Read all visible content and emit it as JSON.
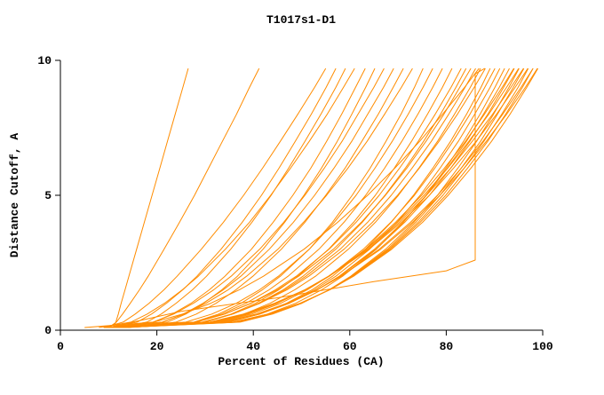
{
  "chart_data": {
    "type": "line",
    "title": "T1017s1-D1",
    "xlabel": "Percent of Residues (CA)",
    "ylabel": "Distance Cutoff, A",
    "xlim": [
      0,
      100
    ],
    "ylim": [
      0,
      10
    ],
    "x_ticks": [
      0,
      20,
      40,
      60,
      80,
      100
    ],
    "y_ticks": [
      0,
      5,
      10
    ],
    "grid": false,
    "legend": "none",
    "line_color": "#ff8c00",
    "axis_color": "#000000",
    "y_samples": [
      0.1,
      0.3,
      0.6,
      1,
      1.5,
      2,
      3,
      4,
      5,
      6,
      7,
      8,
      9,
      9.7
    ],
    "series": [
      {
        "x": [
          11,
          11.5,
          12,
          12.6,
          13.4,
          14.2,
          15.8,
          17.4,
          19,
          20.6,
          22.2,
          23.8,
          25.4,
          26.5
        ]
      },
      {
        "x": [
          10,
          11.6,
          12.9,
          14.5,
          16.4,
          18.2,
          21.5,
          24.7,
          27.8,
          30.7,
          33.6,
          36.5,
          39.2,
          41.2
        ]
      },
      {
        "x": [
          9,
          13,
          15.5,
          18.4,
          21.5,
          24.2,
          29.2,
          33.8,
          38,
          41.9,
          45.6,
          49.2,
          52.7,
          55
        ]
      },
      {
        "x": [
          10,
          15.9,
          18.9,
          22,
          25.4,
          28.3,
          33.3,
          37.7,
          41.7,
          45.3,
          48.7,
          52,
          55.1,
          57.1
        ]
      },
      {
        "x": [
          12,
          17.9,
          20.9,
          24,
          27.4,
          30.3,
          35.3,
          39.7,
          43.7,
          47.3,
          50.7,
          54,
          57.1,
          59.1
        ]
      },
      {
        "x": [
          8,
          14.6,
          18,
          21.6,
          25.3,
          28.6,
          34.2,
          39.2,
          43.6,
          47.7,
          51.6,
          55.3,
          58.7,
          61
        ]
      },
      {
        "x": [
          10,
          19.3,
          23.2,
          27.1,
          30.9,
          34.1,
          39.6,
          44.1,
          48.2,
          51.9,
          55.2,
          58.3,
          61.2,
          63.2
        ]
      },
      {
        "x": [
          13,
          22.2,
          26,
          29.7,
          33.5,
          36.7,
          42,
          46.5,
          50.5,
          54.1,
          57.4,
          60.4,
          63.3,
          65.2
        ]
      },
      {
        "x": [
          9,
          19.2,
          23.5,
          27.6,
          31.8,
          35.4,
          41.3,
          46.3,
          50.7,
          54.7,
          58.4,
          61.7,
          65,
          67.1
        ]
      },
      {
        "x": [
          11,
          21.2,
          25.5,
          29.6,
          33.8,
          37.4,
          43.3,
          48.3,
          52.7,
          56.7,
          60.4,
          63.7,
          67,
          69.1
        ]
      },
      {
        "x": [
          14,
          24,
          28.2,
          32.3,
          36.4,
          39.9,
          45.8,
          50.7,
          55,
          59,
          62.5,
          65.9,
          69,
          71.1
        ]
      },
      {
        "x": [
          10,
          21.1,
          25.7,
          30.2,
          34.8,
          38.6,
          45.1,
          50.4,
          55.2,
          59.6,
          63.6,
          67.2,
          70.7,
          73
        ]
      },
      {
        "x": [
          12,
          27.7,
          32.8,
          37.5,
          41.9,
          45.6,
          51.6,
          56.4,
          60.5,
          64.2,
          67.5,
          70.6,
          73.4,
          75.2
        ]
      },
      {
        "x": [
          9,
          26,
          31.4,
          36.5,
          41.3,
          45.2,
          51.6,
          56.8,
          61.3,
          65.2,
          68.8,
          72.1,
          75.2,
          77.2
        ]
      },
      {
        "x": [
          11,
          28,
          33.4,
          38.5,
          43.3,
          47.2,
          53.6,
          58.8,
          63.3,
          67.2,
          70.8,
          74.1,
          77.2,
          79.2
        ]
      },
      {
        "x": [
          13,
          30,
          35.4,
          40.5,
          45.3,
          49.2,
          55.6,
          60.8,
          65.3,
          69.2,
          72.8,
          76.1,
          79.2,
          81.2
        ]
      },
      {
        "x": [
          10,
          28.2,
          34.1,
          39.5,
          44.6,
          48.9,
          55.7,
          61.3,
          66.1,
          70.3,
          74.2,
          77.7,
          81,
          83.1
        ]
      },
      {
        "x": [
          12,
          30,
          35.7,
          41.1,
          46.2,
          50.3,
          57.1,
          62.6,
          67.3,
          71.5,
          75.3,
          78.8,
          82,
          84.1
        ]
      },
      {
        "x": [
          9,
          27.9,
          34,
          39.6,
          45,
          49.4,
          56.6,
          62.4,
          67.4,
          71.8,
          75.8,
          79.5,
          82.8,
          85.1
        ]
      },
      {
        "x": [
          11,
          29.7,
          35.7,
          41.2,
          46.6,
          50.9,
          58,
          63.7,
          68.6,
          72.9,
          76.9,
          80.5,
          83.9,
          86.1
        ]
      },
      {
        "x": [
          14,
          32.2,
          38.1,
          43.5,
          48.6,
          52.9,
          59.7,
          65.3,
          70.1,
          74.3,
          78.2,
          81.7,
          85,
          87.1
        ]
      },
      {
        "x": [
          10,
          29.4,
          35.7,
          41.4,
          47,
          51.5,
          58.8,
          64.7,
          69.9,
          74.4,
          78.5,
          82.3,
          85.8,
          88.1
        ]
      },
      {
        "x": [
          12,
          34.9,
          41.2,
          46.9,
          52.2,
          56.4,
          63.2,
          68.6,
          73.2,
          77.2,
          80.9,
          84.2,
          87.2,
          89.1
        ]
      },
      {
        "x": [
          9,
          33,
          39.7,
          45.7,
          51.2,
          55.7,
          62.8,
          68.5,
          73.4,
          77.6,
          81.4,
          84.9,
          88,
          90.1
        ]
      },
      {
        "x": [
          11,
          34.7,
          41.3,
          47.2,
          52.7,
          57.1,
          64.1,
          69.8,
          74.6,
          78.7,
          82.5,
          85.9,
          89.1,
          91.1
        ]
      },
      {
        "x": [
          13,
          36.4,
          42.9,
          48.8,
          54.2,
          58.5,
          65.5,
          71.1,
          75.8,
          79.9,
          83.6,
          87,
          90.1,
          92.1
        ]
      },
      {
        "x": [
          10,
          34.6,
          41.4,
          47.5,
          53.3,
          57.8,
          65.1,
          71,
          75.9,
          80.2,
          84.2,
          87.7,
          91,
          93.1
        ]
      },
      {
        "x": [
          12,
          32.4,
          39,
          45,
          50.8,
          55.6,
          63.3,
          69.5,
          74.9,
          79.6,
          84,
          87.9,
          91.6,
          94
        ]
      },
      {
        "x": [
          9,
          34.2,
          41.2,
          47.4,
          53.3,
          57.9,
          65.4,
          71.4,
          76.5,
          80.9,
          84.9,
          88.6,
          91.9,
          94.1
        ]
      },
      {
        "x": [
          11,
          31.9,
          38.6,
          44.8,
          50.8,
          55.6,
          63.5,
          69.9,
          75.4,
          80.3,
          84.7,
          88.8,
          92.5,
          95
        ]
      },
      {
        "x": [
          13,
          37.3,
          44,
          50.1,
          55.7,
          60.2,
          67.4,
          73.3,
          78.2,
          82.4,
          86.3,
          89.8,
          93,
          95.1
        ]
      },
      {
        "x": [
          10,
          31.4,
          38.3,
          44.6,
          50.7,
          55.7,
          63.8,
          70.3,
          75.9,
          80.9,
          85.4,
          89.6,
          93.4,
          96
        ]
      },
      {
        "x": [
          12,
          36.9,
          43.8,
          50,
          55.8,
          60.4,
          67.8,
          73.7,
          78.7,
          83.1,
          87.1,
          90.6,
          93.9,
          96.1
        ]
      },
      {
        "x": [
          9,
          30.9,
          37.9,
          44.4,
          50.7,
          55.7,
          64,
          70.7,
          76.5,
          81.5,
          86.2,
          90.4,
          94.3,
          96.9
        ]
      },
      {
        "x": [
          11,
          36.5,
          43.5,
          49.9,
          55.8,
          60.5,
          68.1,
          74.2,
          79.3,
          83.7,
          87.8,
          91.5,
          94.9,
          97
        ]
      },
      {
        "x": [
          13,
          34.2,
          41,
          47.2,
          53.2,
          58.2,
          66.1,
          72.6,
          78.2,
          83.1,
          87.6,
          91.7,
          95.5,
          98
        ]
      },
      {
        "x": [
          10,
          36.1,
          43.3,
          49.8,
          55.8,
          60.6,
          68.4,
          74.6,
          79.9,
          84.4,
          88.6,
          92.3,
          95.8,
          98
        ]
      },
      {
        "x": [
          12,
          33.6,
          40.6,
          47,
          53.2,
          58.2,
          66.4,
          73,
          78.7,
          83.7,
          88.3,
          92.5,
          96.4,
          98.9
        ]
      },
      {
        "x": [
          9,
          35.7,
          43,
          49.7,
          55.9,
          60.8,
          68.7,
          75.1,
          80.4,
          85.1,
          89.4,
          93.2,
          96.7,
          99
        ]
      },
      {
        "x": [
          5,
          19.4,
          25.3,
          31.2,
          37.1,
          42.1,
          50.5,
          57.5,
          63.7,
          69.3,
          74.5,
          79.2,
          83.8,
          86.8
        ]
      },
      {
        "points": [
          [
            10,
            0.1
          ],
          [
            25,
            0.7
          ],
          [
            45,
            1.2
          ],
          [
            65,
            1.8
          ],
          [
            80,
            2.2
          ],
          [
            86,
            2.6
          ],
          [
            86,
            4
          ],
          [
            86,
            6
          ],
          [
            86,
            8
          ],
          [
            86,
            9.5
          ],
          [
            88,
            9.7
          ]
        ]
      }
    ]
  }
}
